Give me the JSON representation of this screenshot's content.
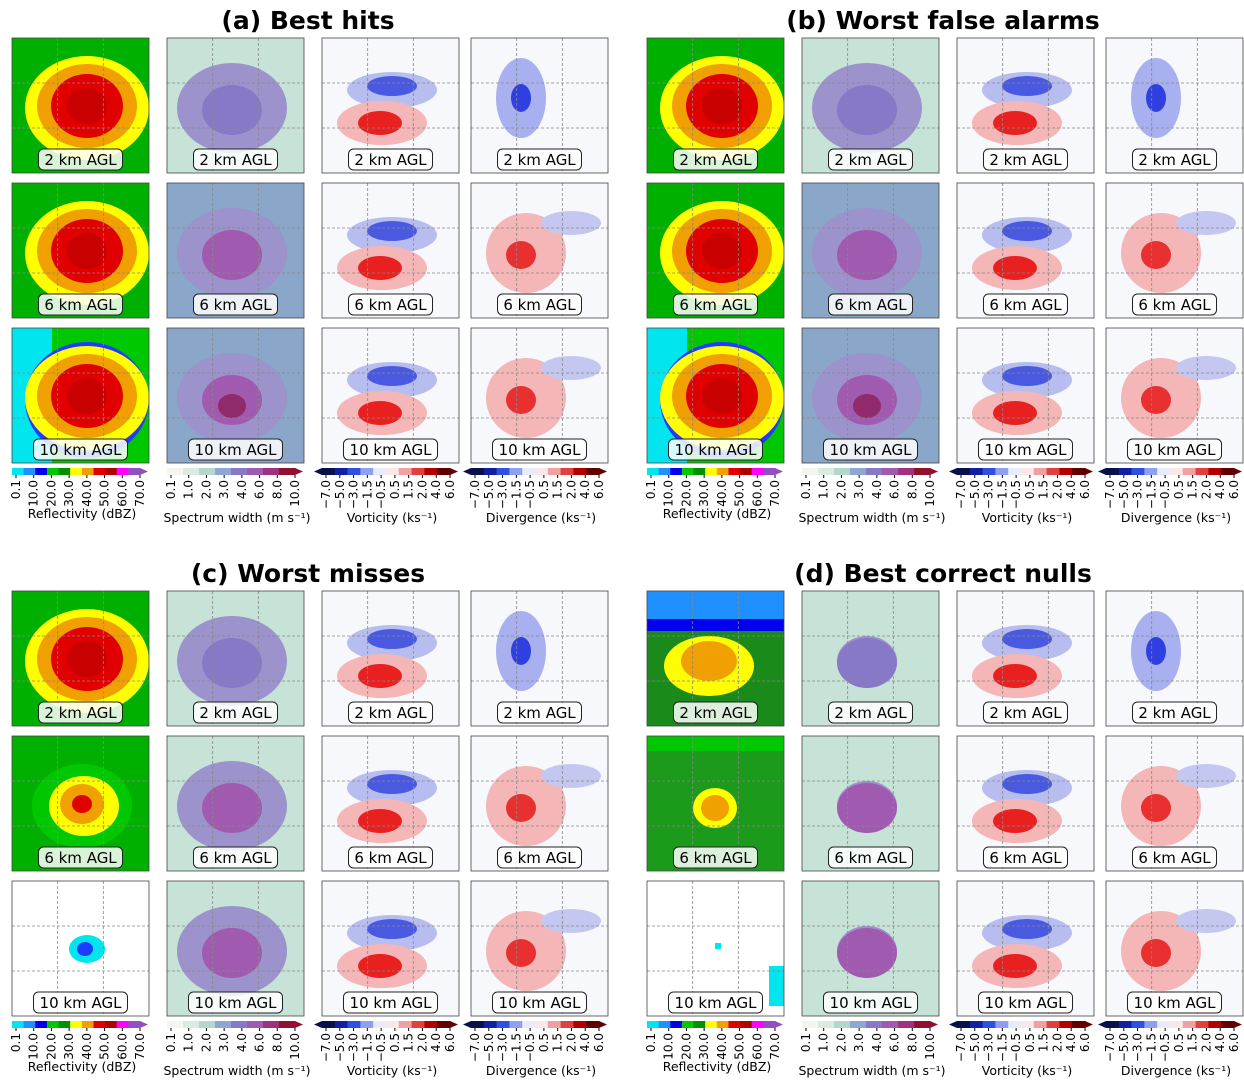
{
  "panels": [
    {
      "title": "(a) Best hits",
      "rows": [
        "2 km AGL",
        "6 km AGL",
        "10 km AGL"
      ]
    },
    {
      "title": "(b) Worst false alarms",
      "rows": [
        "2 km AGL",
        "6 km AGL",
        "10 km AGL"
      ]
    },
    {
      "title": "(c) Worst misses",
      "rows": [
        "2 km AGL",
        "6 km AGL",
        "10 km AGL"
      ]
    },
    {
      "title": "(d) Best correct nulls",
      "rows": [
        "2 km AGL",
        "6 km AGL",
        "10 km AGL"
      ]
    }
  ],
  "colorbars": [
    {
      "label": "Reflectivity (dBZ)",
      "ticks": [
        "0.1",
        "10.0",
        "20.0",
        "30.0",
        "40.0",
        "50.0",
        "60.0",
        "70.0"
      ]
    },
    {
      "label": "Spectrum width (m s⁻¹)",
      "ticks": [
        "0.1",
        "1.0",
        "2.0",
        "3.0",
        "4.0",
        "6.0",
        "8.0",
        "10.0"
      ]
    },
    {
      "label": "Vorticity (ks⁻¹)",
      "ticks": [
        "−7.0",
        "−5.0",
        "−3.0",
        "−1.5",
        "−0.5",
        "0.5",
        "1.5",
        "2.0",
        "4.0",
        "6.0"
      ]
    },
    {
      "label": "Divergence (ks⁻¹)",
      "ticks": [
        "−7.0",
        "−5.0",
        "−3.0",
        "−1.5",
        "−0.5",
        "0.5",
        "1.5",
        "2.0",
        "4.0",
        "6.0"
      ]
    }
  ]
}
